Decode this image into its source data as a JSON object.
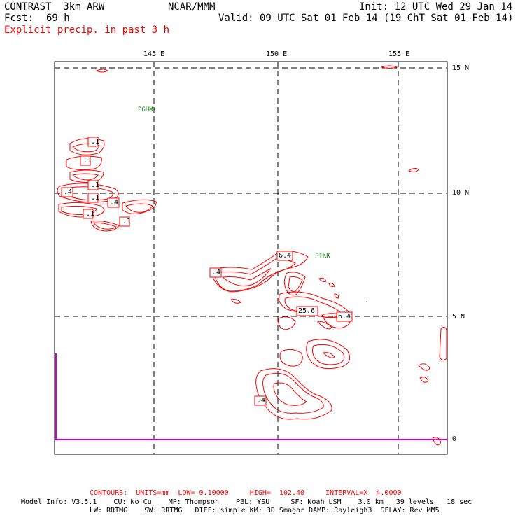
{
  "header": {
    "model": "CONTRAST  3km ARW",
    "org": "NCAR/MMM",
    "init": "Init: 12 UTC Wed 29 Jan 14",
    "fcst_label": "Fcst:",
    "fcst_value": "69 h",
    "valid": "Valid: 09 UTC Sat 01 Feb 14 (19 ChT Sat 01 Feb 14)",
    "field": "Explicit precip. in past 3 h"
  },
  "axes": {
    "lon_labels": [
      "145 E",
      "150 E",
      "155 E"
    ],
    "lat_labels": [
      "15 N",
      "10 N",
      "5 N",
      "0"
    ]
  },
  "stations": [
    "PGUM",
    "PTKK"
  ],
  "contour_labels": [
    ".1",
    ".1",
    ".1",
    ".4",
    ".1",
    ".4",
    ".1",
    ".1",
    ".4",
    "6.4",
    "25.6",
    "6.4",
    ".4"
  ],
  "footer": {
    "contours": "CONTOURS:  UNITS=mm  LOW= 0.10000     HIGH=  102.40     INTERVAL=X  4.0000",
    "model_info_1": "Model Info: V3.5.1    CU: No Cu    MP: Thompson    PBL: YSU     SF: Noah LSM    3.0 km   39 levels   18 sec",
    "model_info_2": "LW: RRTMG    SW: RRTMG   DIFF: simple KM: 3D Smagor DAMP: Rayleigh3  SFLAY: Rev MM5"
  },
  "colors": {
    "precip_contour": "#ff0000",
    "station": "#1a7a1a",
    "equator_line": "#cc00cc",
    "grid": "#000000"
  }
}
